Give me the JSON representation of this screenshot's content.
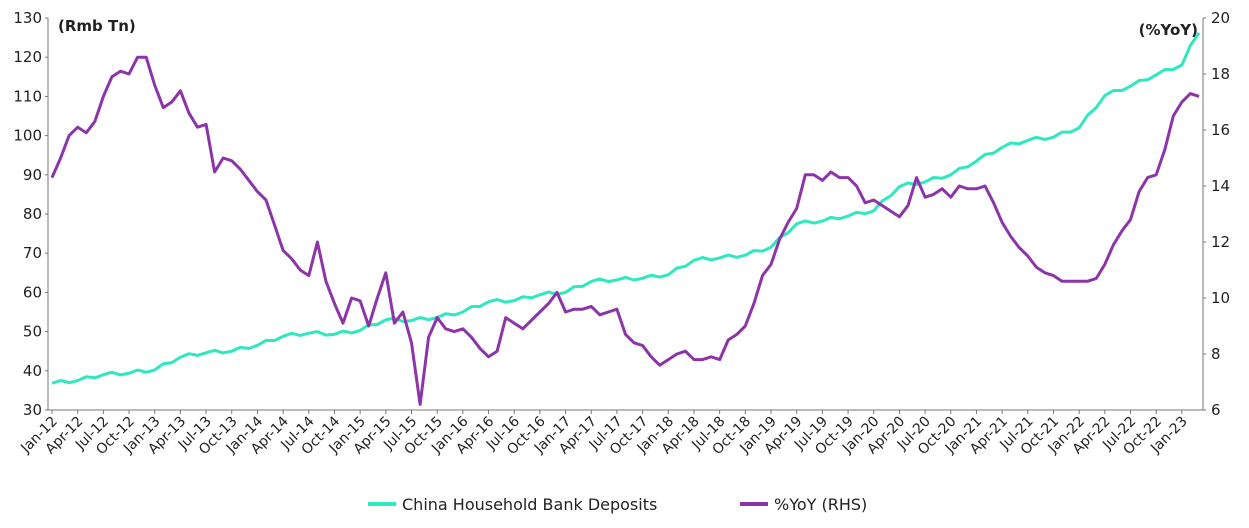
{
  "chart_data": {
    "type": "line",
    "title": "",
    "left_unit_label": "(Rmb Tn)",
    "right_unit_label": "(%YoY)",
    "ylim": [
      30,
      130
    ],
    "y_ticks": [
      30,
      40,
      50,
      60,
      70,
      80,
      90,
      100,
      110,
      120,
      130
    ],
    "y2lim": [
      6,
      20
    ],
    "y2_ticks": [
      6,
      8,
      10,
      12,
      14,
      16,
      18,
      20
    ],
    "x_tick_labels": [
      "Jan-12",
      "Apr-12",
      "Jul-12",
      "Oct-12",
      "Jan-13",
      "Apr-13",
      "Jul-13",
      "Oct-13",
      "Jan-14",
      "Apr-14",
      "Jul-14",
      "Oct-14",
      "Jan-15",
      "Apr-15",
      "Jul-15",
      "Oct-15",
      "Jan-16",
      "Apr-16",
      "Jul-16",
      "Oct-16",
      "Jan-17",
      "Apr-17",
      "Jul-17",
      "Oct-17",
      "Jan-18",
      "Apr-18",
      "Jul-18",
      "Oct-18",
      "Jan-19",
      "Apr-19",
      "Jul-19",
      "Oct-19",
      "Jan-20",
      "Apr-20",
      "Jul-20",
      "Oct-20",
      "Jan-21",
      "Apr-21",
      "Jul-21",
      "Oct-21",
      "Jan-22",
      "Apr-22",
      "Jul-22",
      "Oct-22",
      "Jan-23"
    ],
    "grid": false,
    "legend_position": "bottom",
    "series": [
      {
        "name": "China Household Bank Deposits",
        "axis": "left",
        "color": "#2ee8c0",
        "anchors": [
          [
            0,
            36.8
          ],
          [
            3,
            37.5
          ],
          [
            6,
            39.0
          ],
          [
            9,
            39.4
          ],
          [
            12,
            40.2
          ],
          [
            15,
            43.5
          ],
          [
            18,
            44.6
          ],
          [
            21,
            45.0
          ],
          [
            24,
            46.5
          ],
          [
            27,
            48.8
          ],
          [
            30,
            49.6
          ],
          [
            33,
            49.3
          ],
          [
            36,
            50.3
          ],
          [
            39,
            53.0
          ],
          [
            42,
            52.8
          ],
          [
            45,
            53.6
          ],
          [
            48,
            55.0
          ],
          [
            51,
            57.6
          ],
          [
            54,
            57.9
          ],
          [
            57,
            59.4
          ],
          [
            60,
            60.0
          ],
          [
            63,
            62.8
          ],
          [
            66,
            63.2
          ],
          [
            69,
            63.6
          ],
          [
            72,
            64.5
          ],
          [
            75,
            68.2
          ],
          [
            78,
            68.8
          ],
          [
            81,
            69.5
          ],
          [
            84,
            71.5
          ],
          [
            87,
            77.5
          ],
          [
            90,
            78.2
          ],
          [
            93,
            79.5
          ],
          [
            96,
            80.8
          ],
          [
            99,
            87.0
          ],
          [
            102,
            88.2
          ],
          [
            105,
            90.0
          ],
          [
            108,
            93.5
          ],
          [
            111,
            97.0
          ],
          [
            114,
            98.8
          ],
          [
            117,
            99.6
          ],
          [
            120,
            102.0
          ],
          [
            123,
            110.2
          ],
          [
            126,
            112.6
          ],
          [
            129,
            115.5
          ],
          [
            132,
            118.0
          ],
          [
            133,
            122.5
          ],
          [
            134,
            126.5
          ]
        ]
      },
      {
        "name": "%YoY (RHS)",
        "axis": "right",
        "color": "#8b35a8",
        "anchors": [
          [
            0,
            14.3
          ],
          [
            1,
            15.0
          ],
          [
            2,
            15.8
          ],
          [
            3,
            16.1
          ],
          [
            4,
            15.9
          ],
          [
            5,
            16.3
          ],
          [
            6,
            17.2
          ],
          [
            7,
            17.9
          ],
          [
            8,
            18.1
          ],
          [
            9,
            18.0
          ],
          [
            10,
            18.6
          ],
          [
            11,
            18.6
          ],
          [
            12,
            17.6
          ],
          [
            13,
            16.8
          ],
          [
            14,
            17.0
          ],
          [
            15,
            17.4
          ],
          [
            16,
            16.6
          ],
          [
            17,
            16.1
          ],
          [
            18,
            16.2
          ],
          [
            19,
            14.5
          ],
          [
            20,
            15.0
          ],
          [
            21,
            14.9
          ],
          [
            22,
            14.6
          ],
          [
            23,
            14.2
          ],
          [
            24,
            13.8
          ],
          [
            25,
            13.5
          ],
          [
            26,
            12.6
          ],
          [
            27,
            11.7
          ],
          [
            28,
            11.4
          ],
          [
            29,
            11.0
          ],
          [
            30,
            10.8
          ],
          [
            31,
            12.0
          ],
          [
            32,
            10.6
          ],
          [
            33,
            9.8
          ],
          [
            34,
            9.1
          ],
          [
            35,
            10.0
          ],
          [
            36,
            9.9
          ],
          [
            37,
            9.0
          ],
          [
            38,
            10.0
          ],
          [
            39,
            10.9
          ],
          [
            40,
            9.1
          ],
          [
            41,
            9.5
          ],
          [
            42,
            8.4
          ],
          [
            43,
            6.2
          ],
          [
            44,
            8.6
          ],
          [
            45,
            9.3
          ],
          [
            46,
            8.9
          ],
          [
            47,
            8.8
          ],
          [
            48,
            8.9
          ],
          [
            49,
            8.6
          ],
          [
            50,
            8.2
          ],
          [
            51,
            7.9
          ],
          [
            52,
            8.1
          ],
          [
            53,
            9.3
          ],
          [
            54,
            9.1
          ],
          [
            55,
            8.9
          ],
          [
            56,
            9.2
          ],
          [
            57,
            9.5
          ],
          [
            58,
            9.8
          ],
          [
            59,
            10.2
          ],
          [
            60,
            9.5
          ],
          [
            61,
            9.6
          ],
          [
            62,
            9.6
          ],
          [
            63,
            9.7
          ],
          [
            64,
            9.4
          ],
          [
            65,
            9.5
          ],
          [
            66,
            9.6
          ],
          [
            67,
            8.7
          ],
          [
            68,
            8.4
          ],
          [
            69,
            8.3
          ],
          [
            70,
            7.9
          ],
          [
            71,
            7.6
          ],
          [
            72,
            7.8
          ],
          [
            73,
            8.0
          ],
          [
            74,
            8.1
          ],
          [
            75,
            7.8
          ],
          [
            76,
            7.8
          ],
          [
            77,
            7.9
          ],
          [
            78,
            7.8
          ],
          [
            79,
            8.5
          ],
          [
            80,
            8.7
          ],
          [
            81,
            9.0
          ],
          [
            82,
            9.8
          ],
          [
            83,
            10.8
          ],
          [
            84,
            11.2
          ],
          [
            85,
            12.1
          ],
          [
            86,
            12.7
          ],
          [
            87,
            13.2
          ],
          [
            88,
            14.4
          ],
          [
            89,
            14.4
          ],
          [
            90,
            14.2
          ],
          [
            91,
            14.5
          ],
          [
            92,
            14.3
          ],
          [
            93,
            14.3
          ],
          [
            94,
            14.0
          ],
          [
            95,
            13.4
          ],
          [
            96,
            13.5
          ],
          [
            97,
            13.3
          ],
          [
            98,
            13.1
          ],
          [
            99,
            12.9
          ],
          [
            100,
            13.3
          ],
          [
            101,
            14.3
          ],
          [
            102,
            13.6
          ],
          [
            103,
            13.7
          ],
          [
            104,
            13.9
          ],
          [
            105,
            13.6
          ],
          [
            106,
            14.0
          ],
          [
            107,
            13.9
          ],
          [
            108,
            13.9
          ],
          [
            109,
            14.0
          ],
          [
            110,
            13.4
          ],
          [
            111,
            12.7
          ],
          [
            112,
            12.2
          ],
          [
            113,
            11.8
          ],
          [
            114,
            11.5
          ],
          [
            115,
            11.1
          ],
          [
            116,
            10.9
          ],
          [
            117,
            10.8
          ],
          [
            118,
            10.6
          ],
          [
            119,
            10.6
          ],
          [
            120,
            10.6
          ],
          [
            121,
            10.6
          ],
          [
            122,
            10.7
          ],
          [
            123,
            11.2
          ],
          [
            124,
            11.9
          ],
          [
            125,
            12.4
          ],
          [
            126,
            12.8
          ],
          [
            127,
            13.8
          ],
          [
            128,
            14.3
          ],
          [
            129,
            14.4
          ],
          [
            130,
            15.3
          ],
          [
            131,
            16.5
          ],
          [
            132,
            17.0
          ],
          [
            133,
            17.3
          ],
          [
            134,
            17.2
          ]
        ]
      }
    ]
  }
}
